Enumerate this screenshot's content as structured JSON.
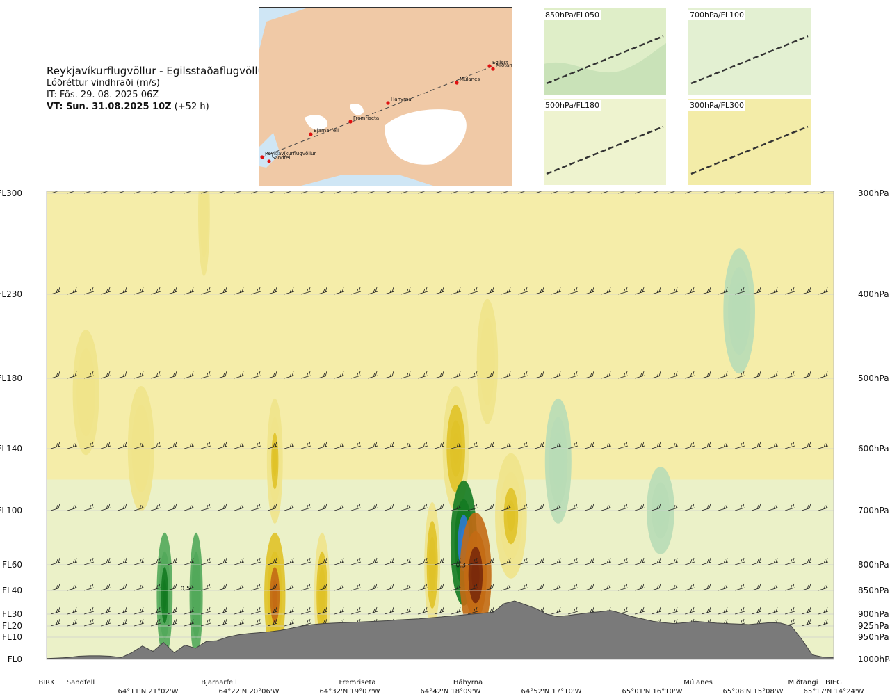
{
  "header": {
    "route": "Reykjavíkurflugvöllur - Egilsstaðaflugvöllur",
    "variable": "Lóðréttur vindhraði (m/s)",
    "issue_time": "IT: Fös. 29. 08. 2025 06Z",
    "valid_time_bold": "VT: Sun. 31.08.2025 10Z",
    "valid_time_offset": "(+52 h)"
  },
  "map": {
    "points": [
      {
        "name": "Reykjavíkurflugvöllur"
      },
      {
        "name": "Sandfell"
      },
      {
        "name": "Bjarnarfell"
      },
      {
        "name": "Fremriseta"
      },
      {
        "name": "Háhyrna"
      },
      {
        "name": "Múlanes"
      },
      {
        "name": "Egilsst"
      },
      {
        "name": "Miðtangi"
      }
    ]
  },
  "thumbnails": [
    {
      "label": "850hPa/FL050"
    },
    {
      "label": "700hPa/FL100"
    },
    {
      "label": "500hPa/FL180"
    },
    {
      "label": "300hPa/FL300"
    }
  ],
  "chart_data": {
    "type": "heatmap",
    "levels": [
      {
        "fl": "FL300",
        "hpa": "300hPa",
        "p": 300
      },
      {
        "fl": "FL230",
        "hpa": "400hPa",
        "p": 400
      },
      {
        "fl": "FL180",
        "hpa": "500hPa",
        "p": 500
      },
      {
        "fl": "FL140",
        "hpa": "600hPa",
        "p": 600
      },
      {
        "fl": "FL100",
        "hpa": "700hPa",
        "p": 700
      },
      {
        "fl": "FL60",
        "hpa": "800hPa",
        "p": 800
      },
      {
        "fl": "FL40",
        "hpa": "850hPa",
        "p": 850
      },
      {
        "fl": "FL30",
        "hpa": "900hPa",
        "p": 900
      },
      {
        "fl": "FL20",
        "hpa": "925hPa",
        "p": 925
      },
      {
        "fl": "FL10",
        "hpa": "950hPa",
        "p": 950
      },
      {
        "fl": "FL0",
        "hpa": "1000hPa",
        "p": 1000
      }
    ],
    "waypoints": [
      "BIRK",
      "Sandfell",
      "Bjarnarfell",
      "Fremriseta",
      "Háhyrna",
      "Múlanes",
      "Miðtangi",
      "BIEG"
    ],
    "coordinates": [
      "64°11'N 21°02'W",
      "64°22'N 20°06'W",
      "64°32'N 19°07'W",
      "64°42'N 18°09'W",
      "64°52'N 17°10'W",
      "65°01'N 16°10'W",
      "65°08'N 15°08'W",
      "65°17'N 14°24'W"
    ],
    "contour_labels": [
      "0.5",
      "0.3"
    ],
    "terrain_pressure_hpa": [
      998,
      997,
      996,
      993,
      992,
      992,
      993,
      996,
      985,
      970,
      982,
      962,
      985,
      968,
      975,
      960,
      958,
      950,
      945,
      942,
      940,
      938,
      935,
      930,
      925,
      922,
      920,
      919,
      918,
      917,
      916,
      915,
      914,
      912,
      911,
      910,
      908,
      906,
      904,
      902,
      900,
      898,
      896,
      878,
      872,
      880,
      888,
      900,
      905,
      903,
      900,
      897,
      895,
      892,
      898,
      905,
      910,
      915,
      918,
      920,
      918,
      915,
      917,
      919,
      920,
      921,
      922,
      920,
      918,
      919,
      925,
      955,
      990,
      995,
      996
    ],
    "features": [
      {
        "x": 0.52,
        "p": 600,
        "w": 0.01,
        "v": 1.8
      },
      {
        "x": 0.53,
        "p": 760,
        "w": 0.01,
        "v": -4.0
      },
      {
        "x": 0.545,
        "p": 820,
        "w": 0.012,
        "v": 5.0
      },
      {
        "x": 0.15,
        "p": 860,
        "w": 0.006,
        "v": -2.5
      },
      {
        "x": 0.19,
        "p": 860,
        "w": 0.005,
        "v": -2.0
      },
      {
        "x": 0.29,
        "p": 860,
        "w": 0.008,
        "v": 2.4
      },
      {
        "x": 0.35,
        "p": 860,
        "w": 0.006,
        "v": 1.5
      },
      {
        "x": 0.49,
        "p": 800,
        "w": 0.006,
        "v": 1.6
      },
      {
        "x": 0.59,
        "p": 710,
        "w": 0.012,
        "v": 1.2
      },
      {
        "x": 0.29,
        "p": 620,
        "w": 0.006,
        "v": 1.3
      },
      {
        "x": 0.05,
        "p": 520,
        "w": 0.01,
        "v": 1.0
      },
      {
        "x": 0.12,
        "p": 600,
        "w": 0.01,
        "v": 0.8
      },
      {
        "x": 0.56,
        "p": 480,
        "w": 0.008,
        "v": 1.0
      },
      {
        "x": 0.65,
        "p": 620,
        "w": 0.01,
        "v": -0.8
      },
      {
        "x": 0.78,
        "p": 700,
        "w": 0.015,
        "v": -0.5
      },
      {
        "x": 0.88,
        "p": 420,
        "w": 0.012,
        "v": -0.6
      },
      {
        "x": 0.2,
        "p": 320,
        "w": 0.004,
        "v": 0.9
      }
    ]
  }
}
